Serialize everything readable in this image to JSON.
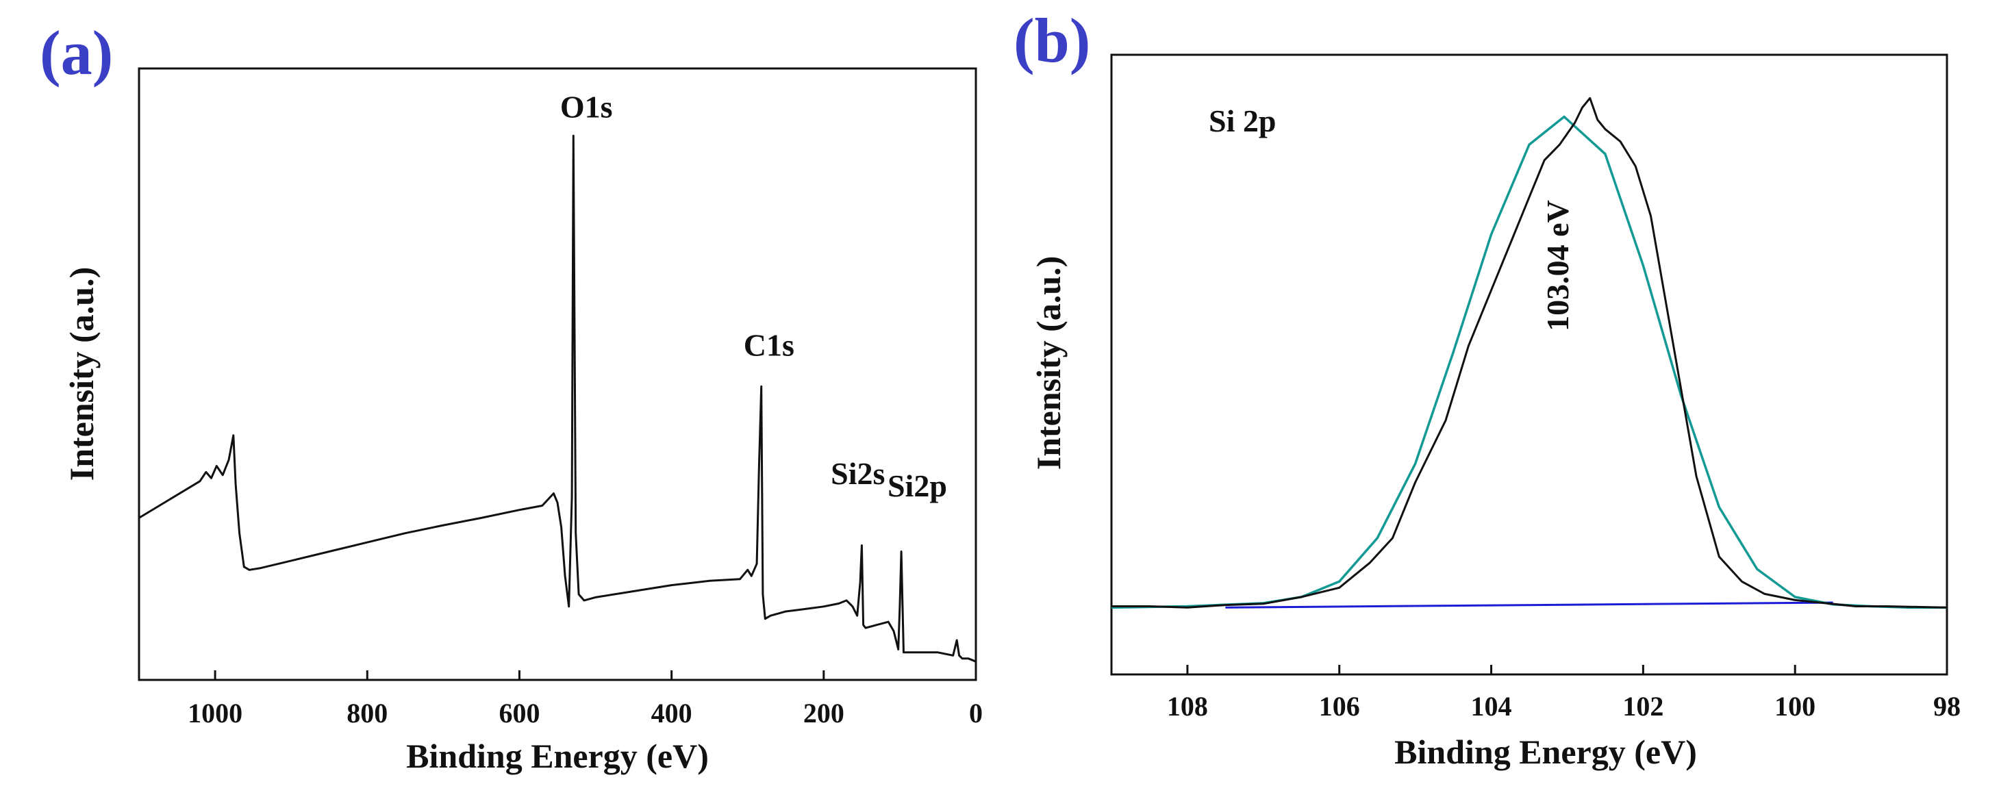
{
  "colors": {
    "panel_label": "#3a3fc6",
    "spectrum": "#111111",
    "fit": "#139a95",
    "baseline": "#1c1cd6",
    "axis": "#111111"
  },
  "chart_data": [
    {
      "panel": "(a)",
      "type": "line",
      "title": "",
      "xlabel": "Binding Energy (eV)",
      "ylabel": "Intensity (a.u.)",
      "xlim": [
        1100,
        0
      ],
      "ylim": [
        0,
        100
      ],
      "x_reversed": true,
      "grid": false,
      "x_ticks": [
        1000,
        800,
        600,
        400,
        200,
        0
      ],
      "x_tick_labels": [
        "1000",
        "800",
        "600",
        "400",
        "200",
        "0"
      ],
      "series": [
        {
          "name": "survey",
          "color": "#111111",
          "x": [
            1100,
            1080,
            1060,
            1040,
            1020,
            1012,
            1005,
            998,
            990,
            982,
            976,
            973,
            968,
            962,
            955,
            940,
            900,
            850,
            800,
            750,
            700,
            650,
            600,
            570,
            555,
            550,
            545,
            540,
            535,
            531,
            529,
            526,
            522,
            515,
            500,
            450,
            400,
            350,
            310,
            300,
            295,
            288,
            285,
            282,
            280,
            277,
            270,
            250,
            230,
            200,
            180,
            170,
            162,
            156,
            152,
            150,
            148,
            145,
            130,
            115,
            108,
            104,
            102,
            100,
            98,
            95,
            80,
            50,
            30,
            25,
            22,
            18,
            10,
            0
          ],
          "y": [
            26.5,
            28.0,
            29.5,
            31.0,
            32.5,
            34.0,
            33.0,
            35.0,
            33.5,
            36.0,
            40.0,
            32.0,
            24.0,
            18.5,
            18.0,
            18.3,
            19.5,
            21.0,
            22.5,
            24.0,
            25.3,
            26.5,
            27.8,
            28.5,
            30.5,
            29.0,
            25.0,
            17.0,
            12.0,
            30.0,
            89.0,
            24.0,
            14.0,
            13.0,
            13.5,
            14.5,
            15.5,
            16.2,
            16.5,
            18.0,
            17.0,
            19.0,
            35.0,
            48.0,
            14.0,
            10.0,
            10.5,
            11.2,
            11.5,
            12.0,
            12.5,
            13.0,
            12.0,
            10.5,
            16.0,
            22.0,
            9.0,
            8.5,
            9.0,
            9.5,
            8.0,
            6.0,
            5.0,
            12.0,
            21.0,
            4.5,
            4.5,
            4.5,
            4.0,
            6.5,
            4.0,
            3.5,
            3.5,
            3.0
          ]
        }
      ],
      "annotations": [
        {
          "text": "O1s",
          "x": 512,
          "y": 92
        },
        {
          "text": "C1s",
          "x": 272,
          "y": 53
        },
        {
          "text": "Si2s",
          "x": 155,
          "y": 32
        },
        {
          "text": "Si2p",
          "x": 77,
          "y": 30
        }
      ]
    },
    {
      "panel": "(b)",
      "type": "line",
      "title": "",
      "xlabel": "Binding Energy (eV)",
      "ylabel": "Intensity (a.u.)",
      "xlim": [
        109,
        98
      ],
      "ylim": [
        0,
        100
      ],
      "x_reversed": true,
      "grid": false,
      "x_ticks": [
        108,
        106,
        104,
        102,
        100,
        98
      ],
      "x_tick_labels": [
        "108",
        "106",
        "104",
        "102",
        "100",
        "98"
      ],
      "series": [
        {
          "name": "Si 2p spectrum",
          "color": "#111111",
          "x": [
            109.0,
            108.5,
            108.0,
            107.5,
            107.0,
            106.5,
            106.0,
            105.6,
            105.3,
            105.0,
            104.6,
            104.3,
            104.0,
            103.7,
            103.5,
            103.3,
            103.1,
            102.9,
            102.8,
            102.7,
            102.6,
            102.5,
            102.3,
            102.1,
            101.9,
            101.6,
            101.3,
            101.0,
            100.7,
            100.4,
            100.0,
            99.6,
            99.2,
            98.8,
            98.4,
            98.0
          ],
          "y": [
            11.0,
            11.0,
            10.8,
            11.2,
            11.4,
            12.5,
            14.0,
            18.0,
            22.0,
            31.0,
            41.0,
            53.0,
            62.0,
            71.0,
            77.0,
            83.0,
            85.5,
            89.0,
            91.5,
            93.0,
            89.5,
            88.0,
            86.0,
            82.0,
            74.0,
            53.0,
            32.0,
            19.0,
            15.0,
            13.0,
            12.0,
            11.5,
            11.0,
            11.0,
            10.9,
            10.8
          ]
        },
        {
          "name": "fit",
          "color": "#139a95",
          "peak_center": 103.04,
          "x": [
            109.0,
            108.0,
            107.0,
            106.5,
            106.0,
            105.5,
            105.0,
            104.5,
            104.0,
            103.5,
            103.04,
            102.5,
            102.0,
            101.5,
            101.0,
            100.5,
            100.0,
            99.5,
            99.0,
            98.5,
            98.0
          ],
          "y": [
            10.8,
            11.0,
            11.5,
            12.5,
            15.0,
            22.0,
            34.0,
            52.0,
            71.0,
            85.5,
            90.0,
            84.0,
            66.0,
            45.0,
            27.0,
            17.0,
            12.5,
            11.3,
            11.0,
            10.8,
            10.8
          ]
        },
        {
          "name": "baseline",
          "color": "#1c1cd6",
          "x": [
            107.5,
            99.5
          ],
          "y": [
            10.8,
            11.6
          ]
        }
      ],
      "annotations": [
        {
          "text": "Si 2p"
        },
        {
          "text": "103.04 eV"
        }
      ]
    }
  ]
}
